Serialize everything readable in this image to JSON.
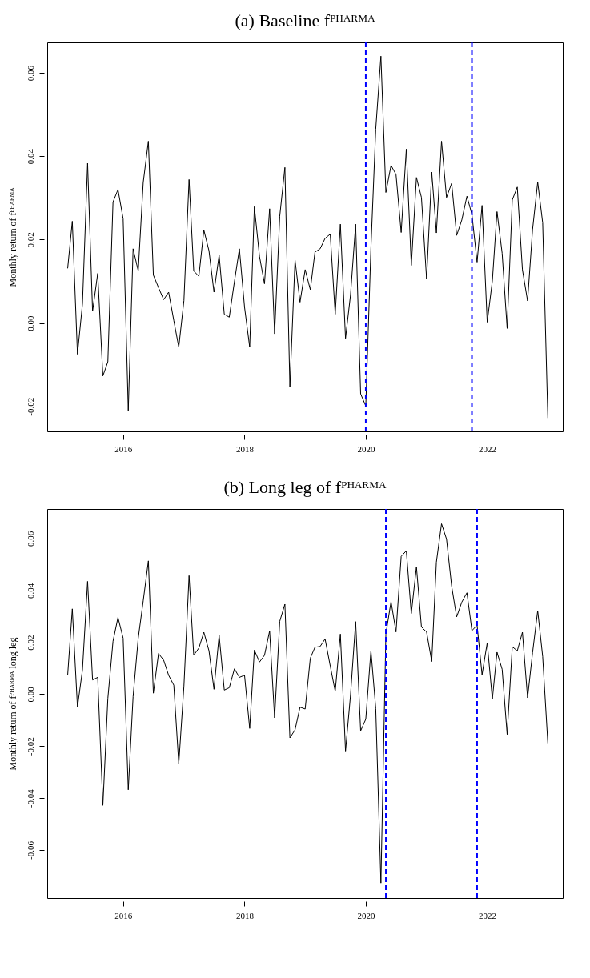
{
  "chart_data": [
    {
      "type": "line",
      "title": "(a) Baseline fᴾᴴᴬᴿᴹᴬ",
      "ylabel": "Monthly return of fᴾᴴᴬᴿᴹᴬ",
      "x": [
        "2015-02",
        "2015-03",
        "2015-04",
        "2015-05",
        "2015-06",
        "2015-07",
        "2015-08",
        "2015-09",
        "2015-10",
        "2015-11",
        "2015-12",
        "2016-01",
        "2016-02",
        "2016-03",
        "2016-04",
        "2016-05",
        "2016-06",
        "2016-07",
        "2016-08",
        "2016-09",
        "2016-10",
        "2016-11",
        "2016-12",
        "2017-01",
        "2017-02",
        "2017-03",
        "2017-04",
        "2017-05",
        "2017-06",
        "2017-07",
        "2017-08",
        "2017-09",
        "2017-10",
        "2017-11",
        "2017-12",
        "2018-01",
        "2018-02",
        "2018-03",
        "2018-04",
        "2018-05",
        "2018-06",
        "2018-07",
        "2018-08",
        "2018-09",
        "2018-10",
        "2018-11",
        "2018-12",
        "2019-01",
        "2019-02",
        "2019-03",
        "2019-04",
        "2019-05",
        "2019-06",
        "2019-07",
        "2019-08",
        "2019-09",
        "2019-10",
        "2019-11",
        "2019-12",
        "2020-01",
        "2020-02",
        "2020-03",
        "2020-04",
        "2020-05",
        "2020-06",
        "2020-07",
        "2020-08",
        "2020-09",
        "2020-10",
        "2020-11",
        "2020-12",
        "2021-01",
        "2021-02",
        "2021-03",
        "2021-04",
        "2021-05",
        "2021-06",
        "2021-07",
        "2021-08",
        "2021-09",
        "2021-10",
        "2021-11",
        "2021-12",
        "2022-01",
        "2022-02",
        "2022-03",
        "2022-04",
        "2022-05",
        "2022-06",
        "2022-07",
        "2022-08",
        "2022-09",
        "2022-10",
        "2022-11",
        "2022-12",
        "2023-01"
      ],
      "series": [
        {
          "color": "#000000",
          "values": [
            0.0131,
            0.0244,
            -0.0075,
            0.0045,
            0.0383,
            0.0028,
            0.0119,
            -0.0127,
            -0.0093,
            0.029,
            0.032,
            0.025,
            -0.021,
            0.0178,
            0.0125,
            0.0337,
            0.0436,
            0.0115,
            0.0085,
            0.0056,
            0.0074,
            0.0006,
            -0.0058,
            0.0054,
            0.0344,
            0.0125,
            0.0112,
            0.0223,
            0.0173,
            0.0074,
            0.0163,
            0.0021,
            0.0014,
            0.0099,
            0.0178,
            0.0038,
            -0.0058,
            0.0279,
            0.016,
            0.0094,
            0.0274,
            -0.0026,
            0.0256,
            0.0373,
            -0.0153,
            0.0151,
            0.005,
            0.0128,
            0.008,
            0.017,
            0.0178,
            0.0203,
            0.0213,
            0.0021,
            0.0237,
            -0.0037,
            0.0067,
            0.0237,
            -0.017,
            -0.0199,
            0.018,
            0.0465,
            0.064,
            0.0313,
            0.0378,
            0.0356,
            0.0217,
            0.0417,
            0.0138,
            0.0349,
            0.0301,
            0.0106,
            0.0362,
            0.0216,
            0.0436,
            0.0301,
            0.0335,
            0.021,
            0.0247,
            0.0304,
            0.026,
            0.0146,
            0.0282,
            0.0002,
            0.0101,
            0.0267,
            0.0167,
            -0.0013,
            0.0295,
            0.0326,
            0.0128,
            0.0053,
            0.0224,
            0.0338,
            0.024,
            -0.0228
          ]
        }
      ],
      "xlim": [
        "2014-10",
        "2023-04"
      ],
      "xticks": [
        "2016",
        "2018",
        "2020",
        "2022"
      ],
      "ylim": [
        -0.026,
        0.0673
      ],
      "yticks": [
        -0.02,
        {
          "value": 0,
          "label": "0.00"
        },
        0.02,
        0.04,
        0.06
      ],
      "ref_lines": [
        {
          "axis": "x",
          "value": "2020-01",
          "color": "#0000ff",
          "line_style": "dashed"
        },
        {
          "axis": "x",
          "value": "2021-10",
          "color": "#0000ff",
          "line_style": "dashed"
        }
      ]
    },
    {
      "type": "line",
      "title": "(b) Long leg of fᴾᴴᴬᴿᴹᴬ",
      "ylabel": "Monthly return of fᴾᴴᴬᴿᴹᴬ long leg",
      "x": [
        "2015-02",
        "2015-03",
        "2015-04",
        "2015-05",
        "2015-06",
        "2015-07",
        "2015-08",
        "2015-09",
        "2015-10",
        "2015-11",
        "2015-12",
        "2016-01",
        "2016-02",
        "2016-03",
        "2016-04",
        "2016-05",
        "2016-06",
        "2016-07",
        "2016-08",
        "2016-09",
        "2016-10",
        "2016-11",
        "2016-12",
        "2017-01",
        "2017-02",
        "2017-03",
        "2017-04",
        "2017-05",
        "2017-06",
        "2017-07",
        "2017-08",
        "2017-09",
        "2017-10",
        "2017-11",
        "2017-12",
        "2018-01",
        "2018-02",
        "2018-03",
        "2018-04",
        "2018-05",
        "2018-06",
        "2018-07",
        "2018-08",
        "2018-09",
        "2018-10",
        "2018-11",
        "2018-12",
        "2019-01",
        "2019-02",
        "2019-03",
        "2019-04",
        "2019-05",
        "2019-06",
        "2019-07",
        "2019-08",
        "2019-09",
        "2019-10",
        "2019-11",
        "2019-12",
        "2020-01",
        "2020-02",
        "2020-03",
        "2020-04",
        "2020-05",
        "2020-06",
        "2020-07",
        "2020-08",
        "2020-09",
        "2020-10",
        "2020-11",
        "2020-12",
        "2021-01",
        "2021-02",
        "2021-03",
        "2021-04",
        "2021-05",
        "2021-06",
        "2021-07",
        "2021-08",
        "2021-09",
        "2021-10",
        "2021-11",
        "2021-12",
        "2022-01",
        "2022-02",
        "2022-03",
        "2022-04",
        "2022-05",
        "2022-06",
        "2022-07",
        "2022-08",
        "2022-09",
        "2022-10",
        "2022-11",
        "2022-12",
        "2023-01"
      ],
      "series": [
        {
          "color": "#000000",
          "values": [
            0.0073,
            0.0329,
            -0.005,
            0.0093,
            0.0435,
            0.0055,
            0.0065,
            -0.0428,
            -0.0016,
            0.0204,
            0.0296,
            0.0216,
            -0.0368,
            -0.0009,
            0.0216,
            0.036,
            0.0514,
            0.0004,
            0.0157,
            0.0131,
            0.0073,
            0.0035,
            -0.0268,
            0.0032,
            0.0457,
            0.015,
            0.0178,
            0.0239,
            0.0167,
            0.0019,
            0.0227,
            0.0016,
            0.0025,
            0.0098,
            0.0065,
            0.0073,
            -0.0132,
            0.017,
            0.0124,
            0.015,
            0.0244,
            -0.0091,
            0.0281,
            0.0347,
            -0.0168,
            -0.0137,
            -0.005,
            -0.0057,
            0.0139,
            0.0181,
            0.0184,
            0.0213,
            0.0109,
            0.0011,
            0.0232,
            -0.0219,
            -0.0004,
            0.028,
            -0.0141,
            -0.0096,
            0.0168,
            -0.0055,
            -0.0727,
            0.0232,
            0.0357,
            0.024,
            0.0531,
            0.0553,
            0.0311,
            0.0491,
            0.0259,
            0.024,
            0.0126,
            0.0509,
            0.0657,
            0.0598,
            0.0416,
            0.0298,
            0.0355,
            0.0391,
            0.0245,
            0.0266,
            0.0075,
            0.0198,
            -0.0019,
            0.0162,
            0.0096,
            -0.0155,
            0.0183,
            0.0167,
            0.0239,
            -0.0014,
            0.016,
            0.0322,
            0.0145,
            -0.0189
          ]
        }
      ],
      "xlim": [
        "2014-10",
        "2023-04"
      ],
      "xticks": [
        "2016",
        "2018",
        "2020",
        "2022"
      ],
      "ylim": [
        -0.0785,
        0.0714
      ],
      "yticks": [
        -0.06,
        -0.04,
        -0.02,
        {
          "value": 0,
          "label": "0.00"
        },
        0.02,
        0.04,
        0.06
      ],
      "ref_lines": [
        {
          "axis": "x",
          "value": "2020-05",
          "color": "#0000ff",
          "line_style": "dashed"
        },
        {
          "axis": "x",
          "value": "2021-11",
          "color": "#0000ff",
          "line_style": "dashed"
        }
      ]
    }
  ]
}
